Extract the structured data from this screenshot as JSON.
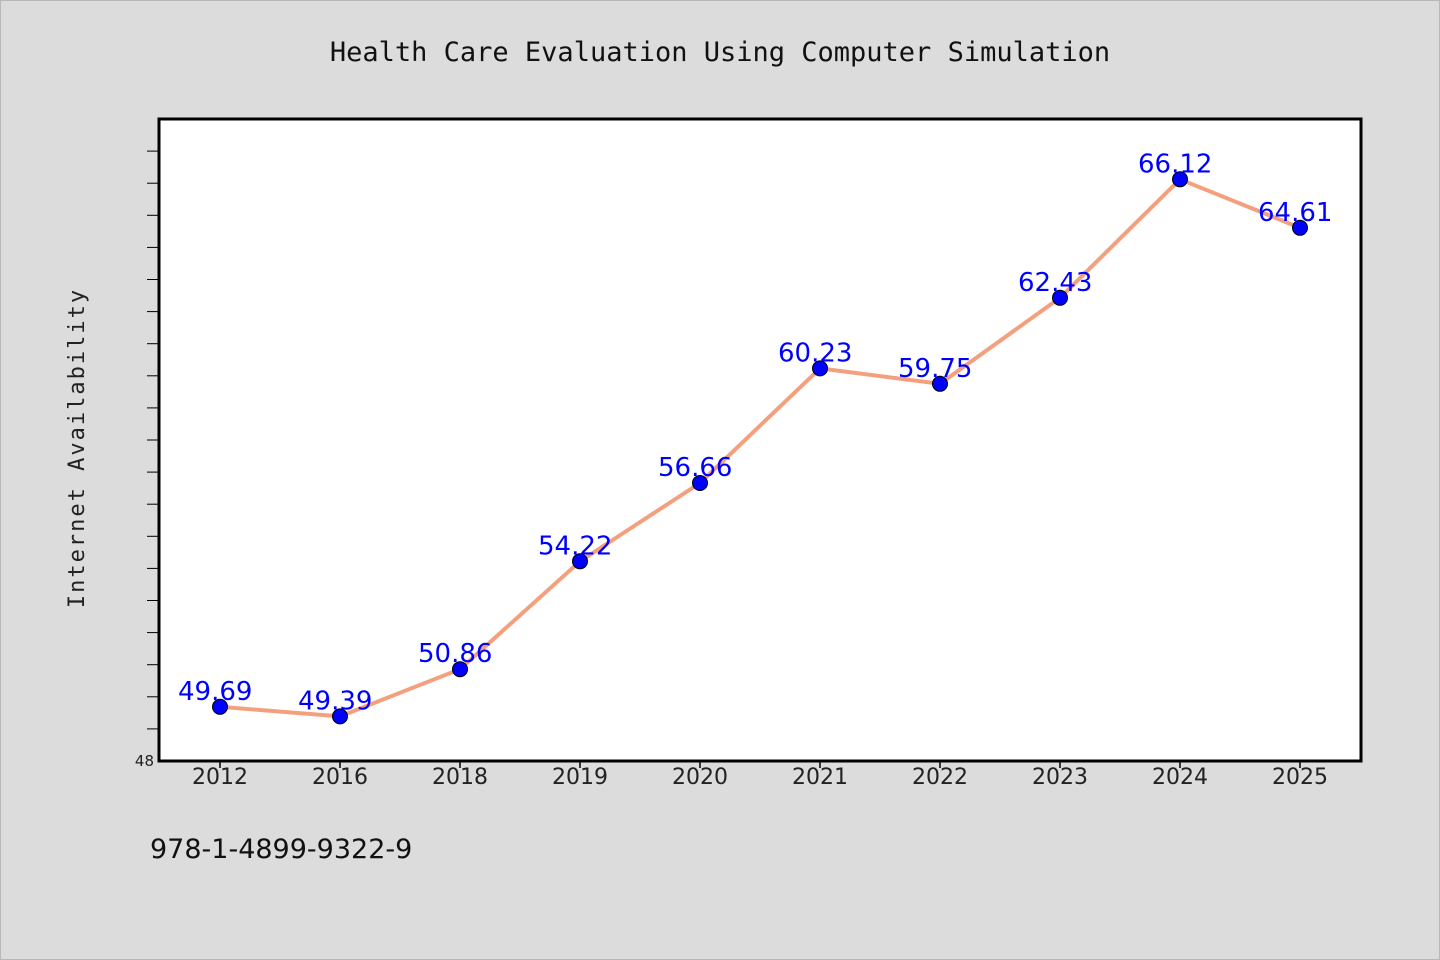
{
  "chart_data": {
    "type": "line",
    "title": "Health Care Evaluation Using Computer Simulation",
    "xlabel": "",
    "ylabel": "Internet Availability",
    "categories": [
      "2012",
      "2016",
      "2018",
      "2019",
      "2020",
      "2021",
      "2022",
      "2023",
      "2024",
      "2025"
    ],
    "series": [
      {
        "values": [
          49.69,
          49.39,
          50.86,
          54.22,
          56.66,
          60.23,
          59.75,
          62.43,
          66.12,
          64.61
        ],
        "labels": [
          "49.69",
          "49.39",
          "50.86",
          "54.22",
          "56.66",
          "60.23",
          "59.75",
          "62.43",
          "66.12",
          "64.61"
        ]
      }
    ],
    "ylim": [
      48,
      68
    ],
    "y_tick_labels": [
      "48"
    ],
    "grid": false,
    "legend": "none",
    "colors": {
      "line": "#f4a07f",
      "marker": "#0000ff",
      "data_label": "#0000ff",
      "plot_bg": "#ffffff",
      "figure_bg": "#dcdcdc"
    }
  },
  "footer": {
    "isbn": "978-1-4899-9322-9"
  }
}
